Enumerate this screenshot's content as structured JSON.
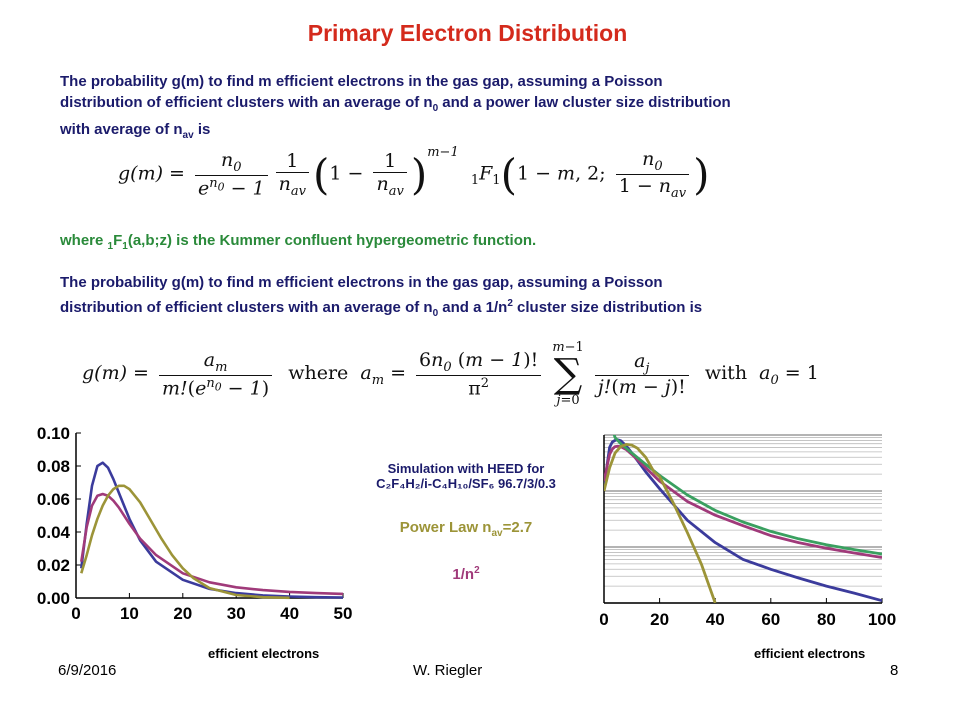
{
  "title": "Primary Electron Distribution",
  "para1": {
    "line1": "The probability g(m) to find m efficient electrons in the gas gap,  assuming a Poisson",
    "line2_a": "distribution of efficient clusters with an average of n",
    "line2_sub": "0",
    "line2_b": " and a power law cluster size distribution",
    "line3_a": "with average of n",
    "line3_sub": "av",
    "line3_b": " is"
  },
  "kummer": {
    "a": "where ",
    "sub1": "1",
    "b": "F",
    "sub2": "1",
    "c": "(a,b;z) is the Kummer confluent hypergeometric function."
  },
  "para2": {
    "line1": "The probability g(m) to find m efficient electrons in the gas gap,  assuming a Poisson",
    "line2_a": "distribution of efficient clusters with an average of n",
    "line2_sub": "0",
    "line2_b": " and a 1/n",
    "line2_sup": "2",
    "line2_c": " cluster size distribution is"
  },
  "legend": {
    "sim_line1": "Simulation with HEED for",
    "sim_line2": "C₂F₄H₂/i-C₄H₁₀/SF₆  96.7/3/0.3",
    "power_a": "Power Law n",
    "power_sub": "av",
    "power_b": "=2.7",
    "inv_a": "1/n",
    "inv_sup": "2"
  },
  "footer": {
    "date": "6/9/2016",
    "author": "W. Riegler",
    "page": "8"
  },
  "chart_data": [
    {
      "type": "line",
      "xlabel": "efficient electrons",
      "ylabel": "",
      "xlim": [
        0,
        50
      ],
      "ylim": [
        0,
        0.1
      ],
      "x_ticks": [
        "0",
        "10",
        "20",
        "30",
        "40",
        "50"
      ],
      "y_ticks": [
        "0.00",
        "0.02",
        "0.04",
        "0.06",
        "0.08",
        "0.10"
      ],
      "grid": false,
      "series": [
        {
          "color": "#3b3b9c",
          "x": [
            1,
            2,
            3,
            4,
            5,
            6,
            7,
            8,
            10,
            12,
            15,
            20,
            25,
            30,
            35,
            40,
            45,
            50
          ],
          "y": [
            0.018,
            0.045,
            0.068,
            0.08,
            0.082,
            0.079,
            0.072,
            0.064,
            0.048,
            0.035,
            0.022,
            0.011,
            0.0055,
            0.003,
            0.0016,
            0.0009,
            0.0005,
            0.0003
          ]
        },
        {
          "color": "#a03a7a",
          "x": [
            1,
            2,
            3,
            4,
            5,
            6,
            7,
            8,
            10,
            12,
            15,
            20,
            25,
            30,
            35,
            40,
            45,
            50
          ],
          "y": [
            0.022,
            0.043,
            0.056,
            0.062,
            0.063,
            0.062,
            0.059,
            0.055,
            0.045,
            0.036,
            0.026,
            0.015,
            0.0095,
            0.0065,
            0.0048,
            0.0037,
            0.003,
            0.0025
          ]
        },
        {
          "color": "#9c9438",
          "x": [
            1,
            2,
            3,
            4,
            5,
            6,
            7,
            8,
            9,
            10,
            12,
            14,
            16,
            18,
            20,
            22,
            25,
            30,
            35,
            40
          ],
          "y": [
            0.015,
            0.026,
            0.038,
            0.048,
            0.056,
            0.062,
            0.066,
            0.068,
            0.068,
            0.066,
            0.058,
            0.047,
            0.036,
            0.026,
            0.018,
            0.012,
            0.006,
            0.0018,
            0.0005,
            0.0001
          ]
        }
      ]
    },
    {
      "type": "line",
      "xlabel": "efficient electrons",
      "ylabel": "",
      "xlim": [
        0,
        100
      ],
      "ylim": [
        0.0001,
        0.1
      ],
      "yscale": "log",
      "x_ticks": [
        "0",
        "20",
        "40",
        "60",
        "80",
        "100"
      ],
      "grid": true,
      "series": [
        {
          "color": "#3b3b9c",
          "x": [
            0,
            2,
            3,
            4,
            5,
            6,
            8,
            10,
            15,
            20,
            30,
            40,
            50,
            60,
            70,
            80,
            90,
            100
          ],
          "y": [
            0.012,
            0.06,
            0.075,
            0.08,
            0.082,
            0.079,
            0.064,
            0.048,
            0.022,
            0.011,
            0.003,
            0.0012,
            0.0006,
            0.0004,
            0.00028,
            0.0002,
            0.00015,
            0.00011
          ]
        },
        {
          "color": "#a03a7a",
          "x": [
            0,
            2,
            3,
            4,
            5,
            6,
            8,
            10,
            15,
            20,
            30,
            40,
            50,
            60,
            70,
            80,
            90,
            100
          ],
          "y": [
            0.015,
            0.045,
            0.056,
            0.062,
            0.063,
            0.062,
            0.055,
            0.045,
            0.026,
            0.015,
            0.0065,
            0.0037,
            0.0024,
            0.0016,
            0.0012,
            0.00095,
            0.00078,
            0.00065
          ]
        },
        {
          "color": "#3aa060",
          "x": [
            2,
            4,
            6,
            8,
            10,
            15,
            20,
            30,
            40,
            50,
            60,
            70,
            80,
            90,
            100
          ],
          "y": [
            0.18,
            0.09,
            0.07,
            0.058,
            0.048,
            0.03,
            0.019,
            0.0085,
            0.0045,
            0.0028,
            0.0019,
            0.0014,
            0.0011,
            0.0009,
            0.00075
          ]
        },
        {
          "color": "#9c9438",
          "x": [
            0,
            2,
            4,
            6,
            8,
            10,
            12,
            15,
            18,
            20,
            25,
            30,
            35,
            40
          ],
          "y": [
            0.01,
            0.026,
            0.048,
            0.062,
            0.068,
            0.066,
            0.058,
            0.04,
            0.022,
            0.018,
            0.006,
            0.0018,
            0.0005,
            0.0001
          ]
        }
      ]
    }
  ]
}
